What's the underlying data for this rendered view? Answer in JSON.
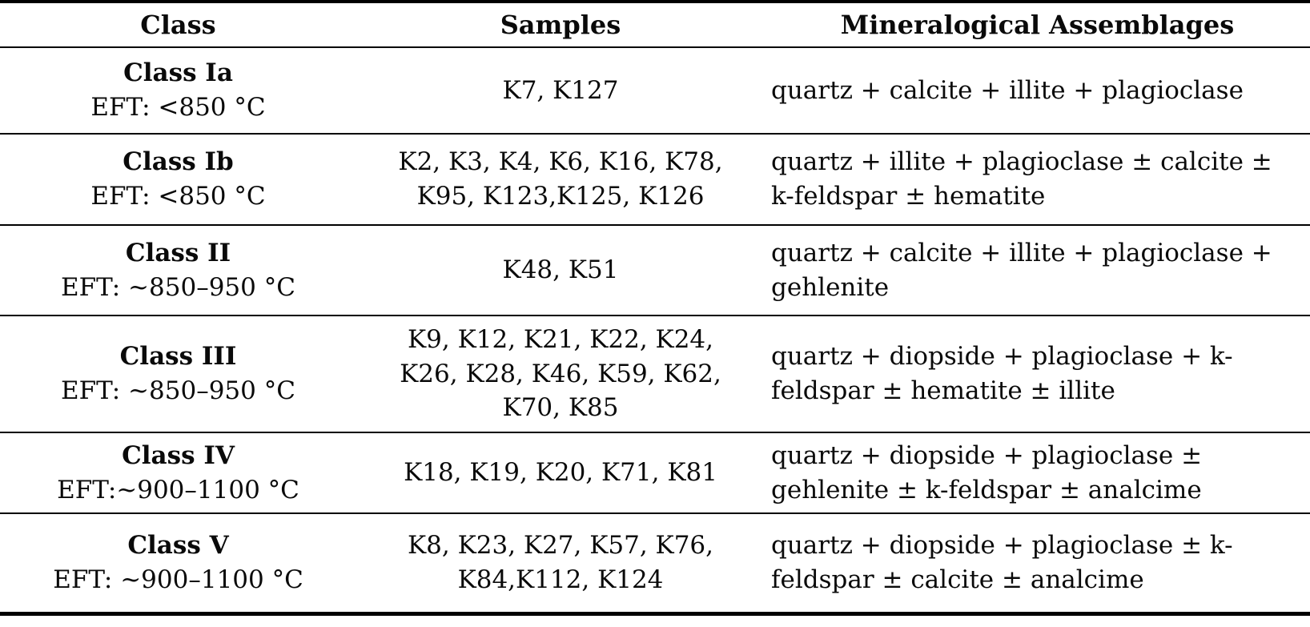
{
  "table": {
    "columns": {
      "class": "Class",
      "samples": "Samples",
      "assemblages": "Mineralogical Assemblages"
    },
    "rows": [
      {
        "class_name": "Class Ia",
        "eft": "EFT: <850 °C",
        "samples": "K7, K127",
        "assemblage": "quartz + calcite + illite + plagioclase"
      },
      {
        "class_name": "Class Ib",
        "eft": "EFT: <850 °C",
        "samples": "K2, K3, K4, K6, K16, K78, K95, K123,K125, K126",
        "assemblage": "quartz + illite + plagioclase ± calcite ± k-feldspar ± hematite"
      },
      {
        "class_name": "Class II",
        "eft": "EFT: ~850–950 °C",
        "samples": "K48, K51",
        "assemblage": "quartz + calcite + illite + plagioclase + gehlenite"
      },
      {
        "class_name": "Class III",
        "eft": "EFT: ~850–950 °C",
        "samples": "K9, K12, K21, K22, K24, K26, K28, K46, K59, K62, K70, K85",
        "assemblage": "quartz + diopside + plagioclase + k-feldspar ± hematite ± illite"
      },
      {
        "class_name": "Class IV",
        "eft": "EFT:~900–1100 °C",
        "samples": "K18, K19, K20, K71, K81",
        "assemblage": "quartz + diopside + plagioclase ± gehlenite ± k-feldspar ± analcime"
      },
      {
        "class_name": "Class V",
        "eft": "EFT: ~900–1100 °C",
        "samples": "K8, K23, K27, K57, K76, K84,K112, K124",
        "assemblage": "quartz + diopside + plagioclase ± k-feldspar ± calcite ± analcime"
      }
    ]
  },
  "colors": {
    "background": "#ffffff",
    "text": "#0a0a0a",
    "rule": "#000000"
  }
}
